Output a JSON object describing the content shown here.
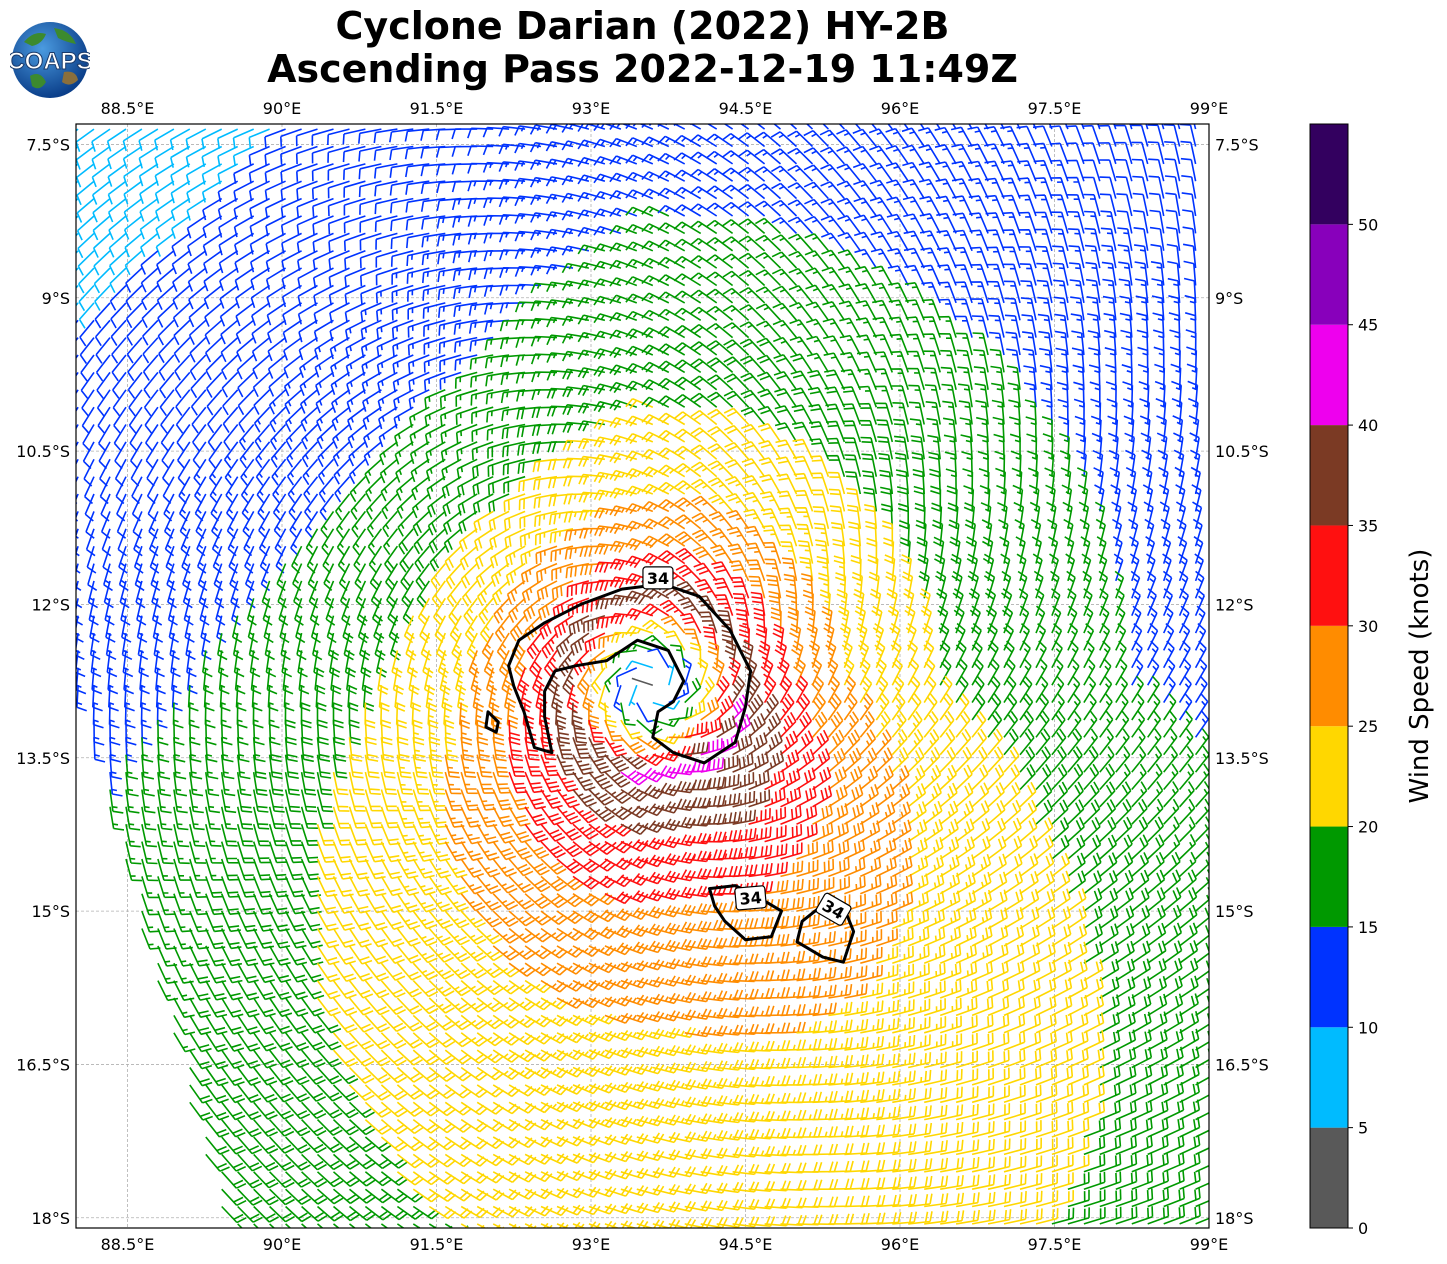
{
  "title": {
    "line1": "Cyclone Darian (2022) HY-2B",
    "line2": "Ascending Pass 2022-12-19 11:49Z"
  },
  "logo": {
    "text": "COAPS"
  },
  "map": {
    "lon_range": [
      88.0,
      99.0
    ],
    "lat_range": [
      -18.1,
      -7.3
    ],
    "lon_ticks": [
      88.5,
      90,
      91.5,
      93,
      94.5,
      96,
      97.5,
      99
    ],
    "lon_tick_labels": [
      "88.5°E",
      "90°E",
      "91.5°E",
      "93°E",
      "94.5°E",
      "96°E",
      "97.5°E",
      "99°E"
    ],
    "lat_ticks": [
      -7.5,
      -9,
      -10.5,
      -12,
      -13.5,
      -15,
      -16.5,
      -18
    ],
    "lat_tick_labels": [
      "7.5°S",
      "9°S",
      "10.5°S",
      "12°S",
      "13.5°S",
      "15°S",
      "16.5°S",
      "18°S"
    ],
    "gridlines": true
  },
  "cyclone": {
    "center_lon": 93.6,
    "center_lat": -12.8,
    "rotation": "clockwise"
  },
  "contours": {
    "level": "34",
    "label": "34",
    "labels": [
      {
        "text": "34",
        "lon": 93.65,
        "lat": -11.75
      },
      {
        "text": "34",
        "lon": 94.55,
        "lat": -14.88
      },
      {
        "text": "34",
        "lon": 95.35,
        "lat": -14.99
      }
    ]
  },
  "colorbar": {
    "label": "Wind Speed (knots)",
    "boundaries": [
      0,
      5,
      10,
      15,
      20,
      25,
      30,
      35,
      40,
      45,
      50,
      55
    ],
    "colors": [
      "#595959",
      "#00bbff",
      "#0033ff",
      "#009900",
      "#ffd700",
      "#ff8c00",
      "#ff1010",
      "#7b3a24",
      "#ee00ee",
      "#8800bb",
      "#33005f"
    ],
    "tick_labels": [
      "0",
      "5",
      "10",
      "15",
      "20",
      "25",
      "30",
      "35",
      "40",
      "45",
      "50"
    ]
  }
}
